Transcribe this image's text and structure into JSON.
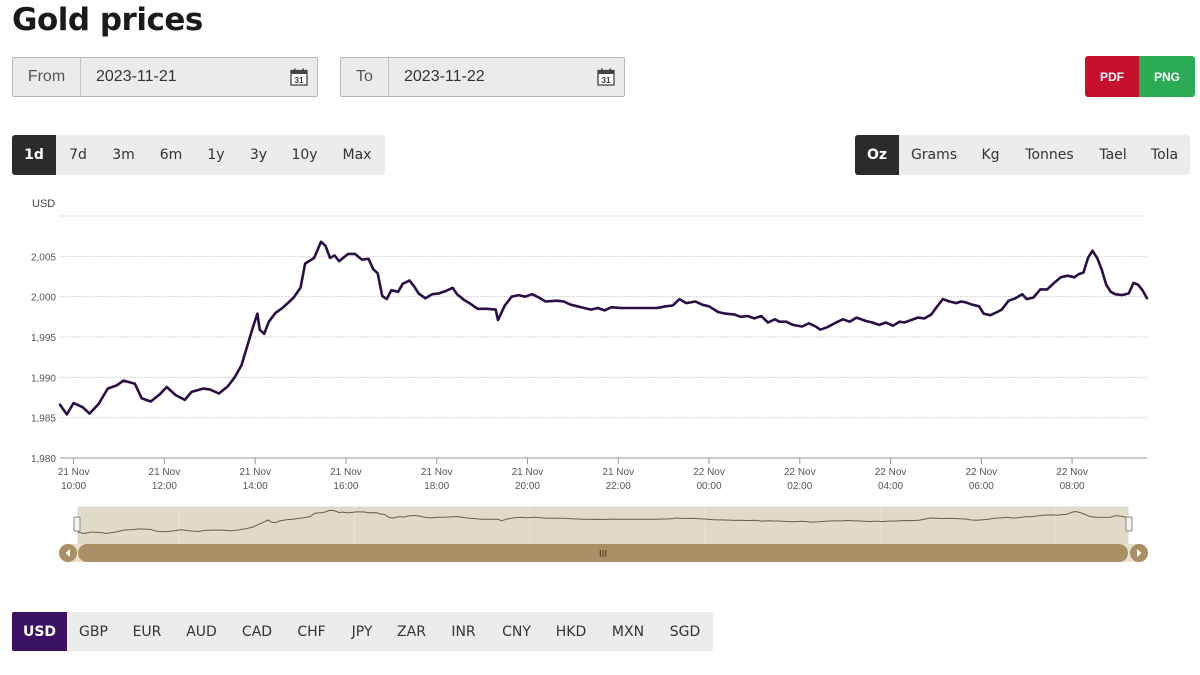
{
  "page": {
    "title": "Gold prices"
  },
  "date_range": {
    "from_label": "From",
    "from_value": "2023-11-21",
    "to_label": "To",
    "to_value": "2023-11-22",
    "calendar_icon": "calendar-icon",
    "calendar_text": "31"
  },
  "export": {
    "pdf_label": "PDF",
    "png_label": "PNG",
    "pdf_color": "#c8102e",
    "png_color": "#2bab54"
  },
  "ranges": {
    "items": [
      "1d",
      "7d",
      "3m",
      "6m",
      "1y",
      "3y",
      "10y",
      "Max"
    ],
    "active": "1d"
  },
  "units": {
    "items": [
      "Oz",
      "Grams",
      "Kg",
      "Tonnes",
      "Tael",
      "Tola"
    ],
    "active": "Oz"
  },
  "currencies": {
    "items": [
      "USD",
      "GBP",
      "EUR",
      "AUD",
      "CAD",
      "CHF",
      "JPY",
      "ZAR",
      "INR",
      "CNY",
      "HKD",
      "MXN",
      "SGD"
    ],
    "active": "USD",
    "active_color": "#3a1163"
  },
  "navigator": {
    "left_arrow_icon": "arrow-left-icon",
    "right_arrow_icon": "arrow-right-icon",
    "grip_label": "III"
  },
  "chart_data": {
    "type": "line",
    "title": "",
    "ylabel": "USD",
    "ylim": [
      1980,
      2010
    ],
    "yticks": [
      1980,
      1985,
      1990,
      1995,
      2000,
      2005
    ],
    "ytick_labels": [
      "1,980",
      "1,985",
      "1,990",
      "1,995",
      "2,000",
      "2,005"
    ],
    "xlim": [
      9.7,
      33.65
    ],
    "xticks": [
      {
        "x": 10,
        "date": "21 Nov",
        "time": "10:00"
      },
      {
        "x": 12,
        "date": "21 Nov",
        "time": "12:00"
      },
      {
        "x": 14,
        "date": "21 Nov",
        "time": "14:00"
      },
      {
        "x": 16,
        "date": "21 Nov",
        "time": "16:00"
      },
      {
        "x": 18,
        "date": "21 Nov",
        "time": "18:00"
      },
      {
        "x": 20,
        "date": "21 Nov",
        "time": "20:00"
      },
      {
        "x": 22,
        "date": "21 Nov",
        "time": "22:00"
      },
      {
        "x": 24,
        "date": "22 Nov",
        "time": "00:00"
      },
      {
        "x": 26,
        "date": "22 Nov",
        "time": "02:00"
      },
      {
        "x": 28,
        "date": "22 Nov",
        "time": "04:00"
      },
      {
        "x": 30,
        "date": "22 Nov",
        "time": "06:00"
      },
      {
        "x": 32,
        "date": "22 Nov",
        "time": "08:00"
      }
    ],
    "grid": true,
    "line_color": "#2a0e45",
    "series": [
      {
        "values": [
          [
            9.7,
            1986.6
          ],
          [
            9.85,
            1985.4
          ],
          [
            10.0,
            1986.8
          ],
          [
            10.2,
            1986.3
          ],
          [
            10.35,
            1985.5
          ],
          [
            10.55,
            1986.7
          ],
          [
            10.75,
            1988.6
          ],
          [
            10.95,
            1989.0
          ],
          [
            11.1,
            1989.6
          ],
          [
            11.35,
            1989.2
          ],
          [
            11.5,
            1987.4
          ],
          [
            11.7,
            1987.0
          ],
          [
            11.9,
            1987.9
          ],
          [
            12.05,
            1988.8
          ],
          [
            12.25,
            1987.8
          ],
          [
            12.45,
            1987.2
          ],
          [
            12.6,
            1988.2
          ],
          [
            12.85,
            1988.6
          ],
          [
            13.0,
            1988.5
          ],
          [
            13.2,
            1988.0
          ],
          [
            13.4,
            1988.9
          ],
          [
            13.55,
            1990.0
          ],
          [
            13.7,
            1991.5
          ],
          [
            13.8,
            1993.4
          ],
          [
            13.95,
            1996.2
          ],
          [
            14.05,
            1997.9
          ],
          [
            14.1,
            1995.9
          ],
          [
            14.2,
            1995.4
          ],
          [
            14.3,
            1996.9
          ],
          [
            14.45,
            1998.0
          ],
          [
            14.6,
            1998.6
          ],
          [
            14.7,
            1999.1
          ],
          [
            14.85,
            1999.9
          ],
          [
            15.0,
            2001.1
          ],
          [
            15.1,
            2004.1
          ],
          [
            15.3,
            2004.8
          ],
          [
            15.45,
            2006.8
          ],
          [
            15.55,
            2006.3
          ],
          [
            15.65,
            2004.8
          ],
          [
            15.75,
            2005.1
          ],
          [
            15.85,
            2004.4
          ],
          [
            16.05,
            2005.3
          ],
          [
            16.2,
            2005.3
          ],
          [
            16.35,
            2004.6
          ],
          [
            16.5,
            2004.7
          ],
          [
            16.6,
            2003.4
          ],
          [
            16.7,
            2002.9
          ],
          [
            16.8,
            2000.1
          ],
          [
            16.9,
            1999.7
          ],
          [
            17.0,
            2000.8
          ],
          [
            17.15,
            2000.6
          ],
          [
            17.25,
            2001.6
          ],
          [
            17.4,
            2002.0
          ],
          [
            17.5,
            2001.3
          ],
          [
            17.6,
            2000.4
          ],
          [
            17.75,
            1999.8
          ],
          [
            17.9,
            2000.3
          ],
          [
            18.05,
            2000.4
          ],
          [
            18.2,
            2000.7
          ],
          [
            18.35,
            2001.1
          ],
          [
            18.45,
            2000.3
          ],
          [
            18.6,
            1999.6
          ],
          [
            18.75,
            1999.1
          ],
          [
            18.9,
            1998.5
          ],
          [
            19.1,
            1998.5
          ],
          [
            19.3,
            1998.4
          ],
          [
            19.35,
            1997.1
          ],
          [
            19.5,
            1998.9
          ],
          [
            19.65,
            2000.0
          ],
          [
            19.8,
            2000.2
          ],
          [
            19.95,
            2000.0
          ],
          [
            20.1,
            2000.3
          ],
          [
            20.25,
            1999.9
          ],
          [
            20.4,
            1999.4
          ],
          [
            20.65,
            1999.5
          ],
          [
            20.8,
            1999.4
          ],
          [
            20.95,
            1999.0
          ],
          [
            21.1,
            1998.8
          ],
          [
            21.25,
            1998.6
          ],
          [
            21.4,
            1998.4
          ],
          [
            21.55,
            1998.6
          ],
          [
            21.7,
            1998.3
          ],
          [
            21.85,
            1998.7
          ],
          [
            22.05,
            1998.6
          ],
          [
            22.25,
            1998.6
          ],
          [
            22.45,
            1998.6
          ],
          [
            22.65,
            1998.6
          ],
          [
            22.85,
            1998.6
          ],
          [
            23.05,
            1998.8
          ],
          [
            23.2,
            1998.9
          ],
          [
            23.35,
            1999.7
          ],
          [
            23.5,
            1999.2
          ],
          [
            23.7,
            1999.4
          ],
          [
            23.85,
            1999.0
          ],
          [
            24.0,
            1998.8
          ],
          [
            24.2,
            1998.1
          ],
          [
            24.35,
            1997.9
          ],
          [
            24.55,
            1997.8
          ],
          [
            24.7,
            1997.5
          ],
          [
            24.85,
            1997.6
          ],
          [
            25.0,
            1997.3
          ],
          [
            25.15,
            1997.6
          ],
          [
            25.3,
            1996.8
          ],
          [
            25.45,
            1997.2
          ],
          [
            25.55,
            1996.9
          ],
          [
            25.7,
            1996.9
          ],
          [
            25.85,
            1996.5
          ],
          [
            26.05,
            1996.3
          ],
          [
            26.2,
            1996.7
          ],
          [
            26.35,
            1996.3
          ],
          [
            26.45,
            1995.9
          ],
          [
            26.6,
            1996.2
          ],
          [
            26.8,
            1996.8
          ],
          [
            26.95,
            1997.2
          ],
          [
            27.1,
            1996.9
          ],
          [
            27.25,
            1997.4
          ],
          [
            27.45,
            1997.0
          ],
          [
            27.6,
            1996.8
          ],
          [
            27.75,
            1996.5
          ],
          [
            27.9,
            1996.8
          ],
          [
            28.05,
            1996.4
          ],
          [
            28.2,
            1996.9
          ],
          [
            28.3,
            1996.8
          ],
          [
            28.45,
            1997.1
          ],
          [
            28.6,
            1997.4
          ],
          [
            28.75,
            1997.3
          ],
          [
            28.9,
            1997.8
          ],
          [
            29.0,
            1998.6
          ],
          [
            29.15,
            1999.7
          ],
          [
            29.3,
            1999.4
          ],
          [
            29.45,
            1999.2
          ],
          [
            29.55,
            1999.4
          ],
          [
            29.65,
            1999.3
          ],
          [
            29.8,
            1999.0
          ],
          [
            29.95,
            1998.8
          ],
          [
            30.05,
            1997.9
          ],
          [
            30.2,
            1997.7
          ],
          [
            30.35,
            1998.1
          ],
          [
            30.45,
            1998.4
          ],
          [
            30.6,
            1999.5
          ],
          [
            30.75,
            1999.8
          ],
          [
            30.9,
            2000.3
          ],
          [
            31.0,
            1999.7
          ],
          [
            31.15,
            1999.9
          ],
          [
            31.3,
            2000.9
          ],
          [
            31.45,
            2000.9
          ],
          [
            31.6,
            2001.7
          ],
          [
            31.75,
            2002.4
          ],
          [
            31.9,
            2002.6
          ],
          [
            32.05,
            2002.4
          ],
          [
            32.15,
            2002.8
          ],
          [
            32.25,
            2003.0
          ],
          [
            32.35,
            2004.8
          ],
          [
            32.45,
            2005.7
          ],
          [
            32.55,
            2004.8
          ],
          [
            32.65,
            2003.4
          ],
          [
            32.75,
            2001.5
          ],
          [
            32.85,
            2000.6
          ],
          [
            32.95,
            2000.3
          ],
          [
            33.1,
            2000.2
          ],
          [
            33.25,
            2000.4
          ],
          [
            33.35,
            2001.7
          ],
          [
            33.45,
            2001.5
          ],
          [
            33.55,
            2000.8
          ],
          [
            33.65,
            1999.8
          ]
        ]
      }
    ]
  }
}
